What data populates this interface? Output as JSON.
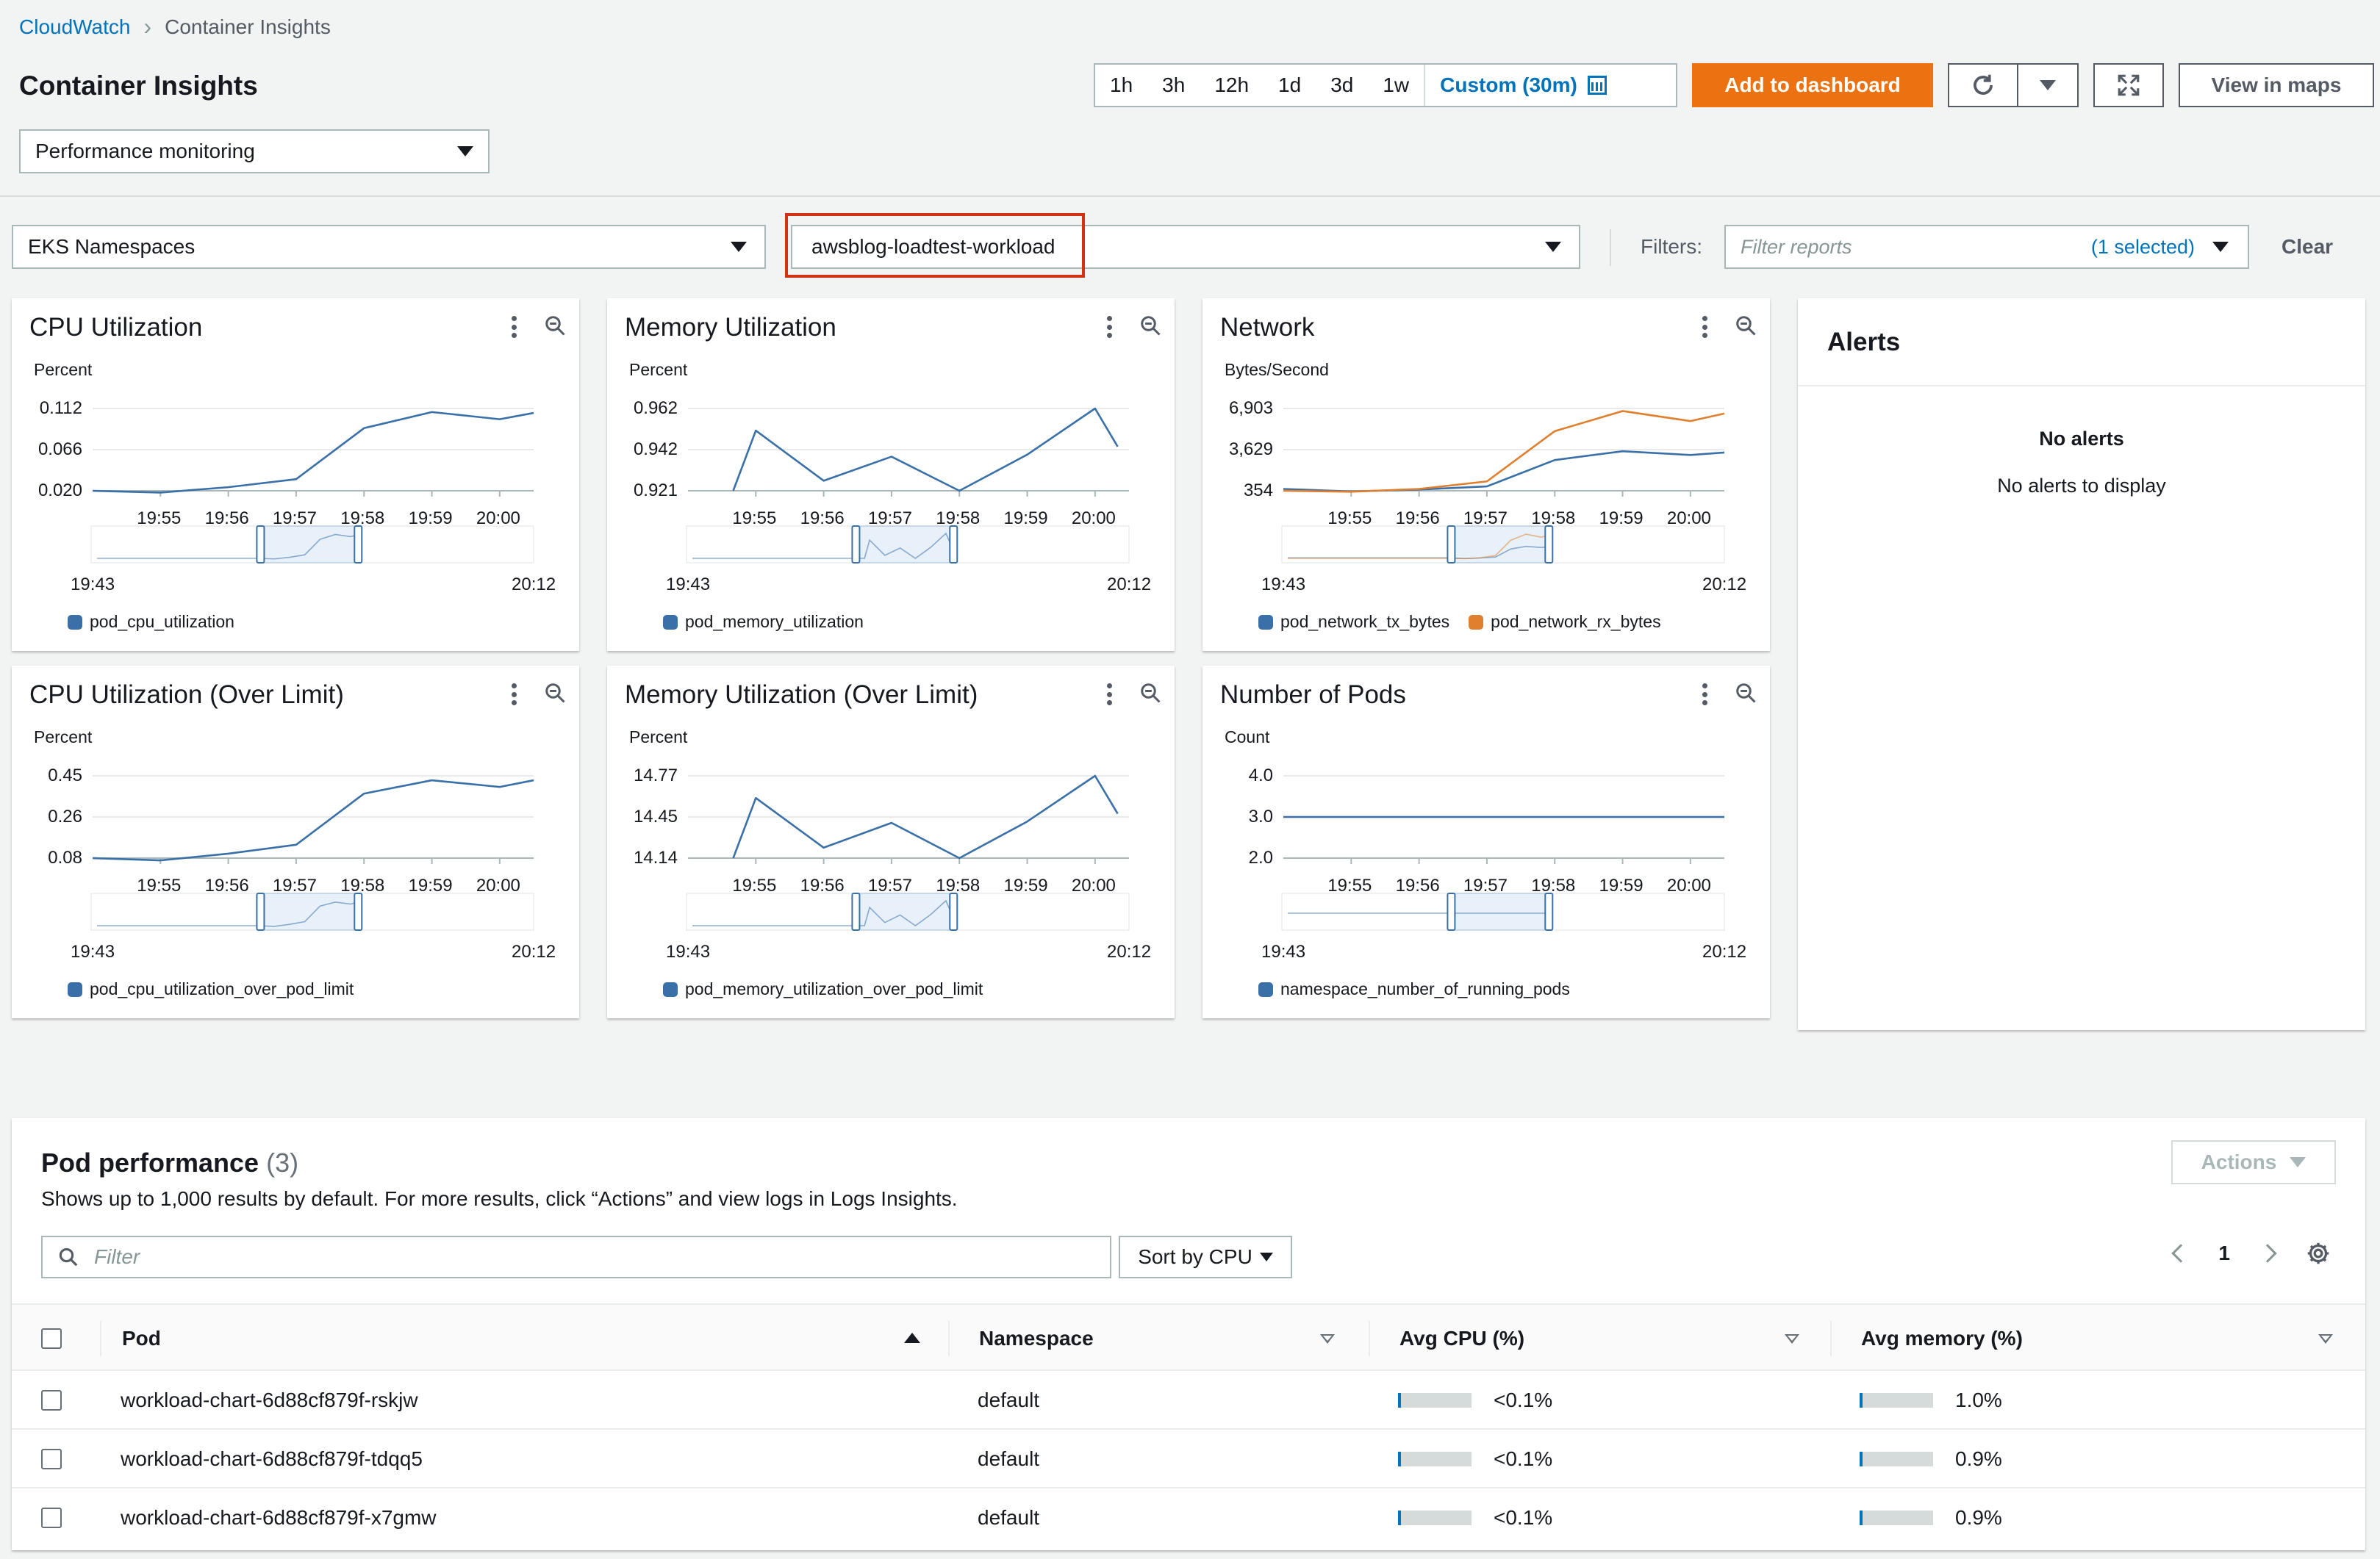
{
  "breadcrumb": {
    "root": "CloudWatch",
    "current": "Container Insights"
  },
  "page": {
    "title": "Container Insights",
    "mode": "Performance monitoring"
  },
  "time_ranges": [
    "1h",
    "3h",
    "12h",
    "1d",
    "3d",
    "1w"
  ],
  "time_selected": "Custom (30m)",
  "toolbar": {
    "add_dashboard": "Add to dashboard",
    "view_maps": "View in maps"
  },
  "filters": {
    "resource_type": "EKS Namespaces",
    "resource": "awsblog-loadtest-workload",
    "label": "Filters:",
    "placeholder": "Filter reports",
    "selected": "(1 selected)",
    "clear": "Clear"
  },
  "colors": {
    "series_blue": "#3a70a8",
    "series_orange": "#e07f2e",
    "primary": "#ec7211",
    "link": "#0073bb",
    "alert_box": "#d13212"
  },
  "x_ticks": [
    "19:55",
    "19:56",
    "19:57",
    "19:58",
    "19:59",
    "20:00"
  ],
  "range": {
    "start": "19:43",
    "end": "20:12"
  },
  "widgets": [
    {
      "title": "CPU Utilization",
      "unit": "Percent",
      "yticks": [
        "0.112",
        "0.066",
        "0.020"
      ],
      "legend": [
        "pod_cpu_utilization"
      ]
    },
    {
      "title": "Memory Utilization",
      "unit": "Percent",
      "yticks": [
        "0.962",
        "0.942",
        "0.921"
      ],
      "legend": [
        "pod_memory_utilization"
      ]
    },
    {
      "title": "Network",
      "unit": "Bytes/Second",
      "yticks": [
        "6,903",
        "3,629",
        "354"
      ],
      "legend": [
        "pod_network_tx_bytes",
        "pod_network_rx_bytes"
      ]
    },
    {
      "title": "CPU Utilization (Over Limit)",
      "unit": "Percent",
      "yticks": [
        "0.45",
        "0.26",
        "0.08"
      ],
      "legend": [
        "pod_cpu_utilization_over_pod_limit"
      ]
    },
    {
      "title": "Memory Utilization (Over Limit)",
      "unit": "Percent",
      "yticks": [
        "14.77",
        "14.45",
        "14.14"
      ],
      "legend": [
        "pod_memory_utilization_over_pod_limit"
      ]
    },
    {
      "title": "Number of Pods",
      "unit": "Count",
      "yticks": [
        "4.0",
        "3.0",
        "2.0"
      ],
      "legend": [
        "namespace_number_of_running_pods"
      ]
    }
  ],
  "chart_data": [
    {
      "type": "line",
      "title": "CPU Utilization",
      "ylabel": "Percent",
      "x": [
        "19:54",
        "19:55",
        "19:56",
        "19:57",
        "19:58",
        "19:59",
        "20:00",
        "20:00:30"
      ],
      "ylim": [
        0.02,
        0.112
      ],
      "series": [
        {
          "name": "pod_cpu_utilization",
          "values": [
            0.02,
            0.018,
            0.024,
            0.033,
            0.09,
            0.108,
            0.1,
            0.107
          ]
        }
      ]
    },
    {
      "type": "line",
      "title": "Memory Utilization",
      "ylabel": "Percent",
      "x": [
        "19:54:40",
        "19:55",
        "19:56",
        "19:57",
        "19:58",
        "19:59",
        "20:00",
        "20:00:20"
      ],
      "ylim": [
        0.921,
        0.962
      ],
      "series": [
        {
          "name": "pod_memory_utilization",
          "values": [
            0.921,
            0.951,
            0.926,
            0.938,
            0.921,
            0.939,
            0.962,
            0.943
          ]
        }
      ]
    },
    {
      "type": "line",
      "title": "Network",
      "ylabel": "Bytes/Second",
      "x": [
        "19:54",
        "19:55",
        "19:56",
        "19:57",
        "19:58",
        "19:59",
        "20:00",
        "20:00:30"
      ],
      "ylim": [
        354,
        6903
      ],
      "series": [
        {
          "name": "pod_network_tx_bytes",
          "values": [
            500,
            300,
            450,
            700,
            2800,
            3500,
            3200,
            3400
          ]
        },
        {
          "name": "pod_network_rx_bytes",
          "values": [
            354,
            280,
            500,
            1100,
            5100,
            6700,
            5900,
            6500
          ]
        }
      ]
    },
    {
      "type": "line",
      "title": "CPU Utilization (Over Limit)",
      "ylabel": "Percent",
      "x": [
        "19:54",
        "19:55",
        "19:56",
        "19:57",
        "19:58",
        "19:59",
        "20:00",
        "20:00:30"
      ],
      "ylim": [
        0.08,
        0.45
      ],
      "series": [
        {
          "name": "pod_cpu_utilization_over_pod_limit",
          "values": [
            0.08,
            0.07,
            0.1,
            0.14,
            0.37,
            0.43,
            0.4,
            0.43
          ]
        }
      ]
    },
    {
      "type": "line",
      "title": "Memory Utilization (Over Limit)",
      "ylabel": "Percent",
      "x": [
        "19:54:40",
        "19:55",
        "19:56",
        "19:57",
        "19:58",
        "19:59",
        "20:00",
        "20:00:20"
      ],
      "ylim": [
        14.14,
        14.77
      ],
      "series": [
        {
          "name": "pod_memory_utilization_over_pod_limit",
          "values": [
            14.14,
            14.6,
            14.22,
            14.41,
            14.14,
            14.42,
            14.77,
            14.48
          ]
        }
      ]
    },
    {
      "type": "line",
      "title": "Number of Pods",
      "ylabel": "Count",
      "x": [
        "19:54",
        "20:00:30"
      ],
      "ylim": [
        2.0,
        4.0
      ],
      "series": [
        {
          "name": "namespace_number_of_running_pods",
          "values": [
            3.0,
            3.0
          ]
        }
      ]
    }
  ],
  "alerts": {
    "title": "Alerts",
    "heading": "No alerts",
    "message": "No alerts to display"
  },
  "pod_performance": {
    "title": "Pod performance",
    "count": "(3)",
    "description": "Shows up to 1,000 results by default. For more results, click “Actions” and view logs in Logs Insights.",
    "actions": "Actions",
    "filter_placeholder": "Filter",
    "sort": "Sort by CPU",
    "page": "1",
    "columns": [
      "Pod",
      "Namespace",
      "Avg CPU (%)",
      "Avg memory (%)"
    ],
    "rows": [
      {
        "pod": "workload-chart-6d88cf879f-rskjw",
        "namespace": "default",
        "cpu": "<0.1%",
        "cpu_fill": 0.04,
        "mem": "1.0%",
        "mem_fill": 0.04
      },
      {
        "pod": "workload-chart-6d88cf879f-tdqq5",
        "namespace": "default",
        "cpu": "<0.1%",
        "cpu_fill": 0.04,
        "mem": "0.9%",
        "mem_fill": 0.04
      },
      {
        "pod": "workload-chart-6d88cf879f-x7gmw",
        "namespace": "default",
        "cpu": "<0.1%",
        "cpu_fill": 0.04,
        "mem": "0.9%",
        "mem_fill": 0.04
      }
    ]
  }
}
